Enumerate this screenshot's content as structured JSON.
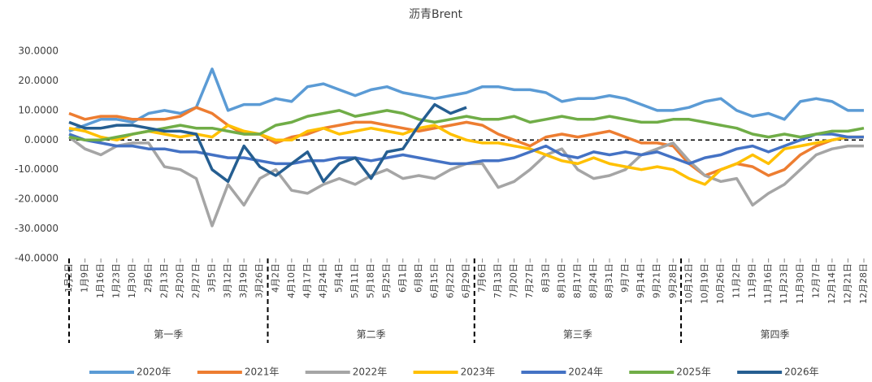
{
  "chart_data": {
    "type": "line",
    "title": "沥青Brent",
    "categories": [
      "1月2日",
      "1月9日",
      "1月16日",
      "1月23日",
      "1月30日",
      "2月6日",
      "2月13日",
      "2月20日",
      "2月27日",
      "3月5日",
      "3月12日",
      "3月19日",
      "3月26日",
      "4月2日",
      "4月10日",
      "4月17日",
      "4月24日",
      "5月4日",
      "5月11日",
      "5月18日",
      "5月25日",
      "6月1日",
      "6月8日",
      "6月15日",
      "6月22日",
      "6月29日",
      "7月6日",
      "7月13日",
      "7月20日",
      "7月27日",
      "8月3日",
      "8月10日",
      "8月17日",
      "8月24日",
      "8月31日",
      "9月7日",
      "9月14日",
      "9月21日",
      "9月28日",
      "10月12日",
      "10月19日",
      "10月26日",
      "11月2日",
      "11月9日",
      "11月16日",
      "11月23日",
      "11月30日",
      "12月7日",
      "12月14日",
      "12月21日",
      "12月28日"
    ],
    "quarters": [
      "第一季",
      "第二季",
      "第三季",
      "第四季"
    ],
    "ylim": [
      -40,
      30
    ],
    "yticks": [
      {
        "value": -40,
        "label": "-40.0000"
      },
      {
        "value": -30,
        "label": "-30.0000"
      },
      {
        "value": -20,
        "label": "-20.0000"
      },
      {
        "value": -10,
        "label": "-10.0000"
      },
      {
        "value": 0,
        "label": "0.0000"
      },
      {
        "value": 10,
        "label": "10.0000"
      },
      {
        "value": 20,
        "label": "20.0000"
      },
      {
        "value": 30,
        "label": "30.0000"
      }
    ],
    "series": [
      {
        "name": "2020年",
        "color": "#5B9BD5",
        "values": [
          3,
          5,
          7,
          7,
          6,
          9,
          10,
          9,
          11,
          24,
          10,
          12,
          12,
          14,
          13,
          18,
          19,
          17,
          15,
          17,
          18,
          16,
          15,
          14,
          15,
          16,
          18,
          18,
          17,
          17,
          16,
          13,
          14,
          14,
          15,
          14,
          12,
          10,
          10,
          11,
          13,
          14,
          10,
          8,
          9,
          7,
          13,
          14,
          13,
          10,
          10
        ]
      },
      {
        "name": "2021年",
        "color": "#ED7D31",
        "values": [
          9,
          7,
          8,
          8,
          7,
          7,
          7,
          8,
          11,
          9,
          5,
          2,
          2,
          -1,
          1,
          2,
          4,
          5,
          6,
          6,
          5,
          4,
          3,
          4,
          5,
          6,
          5,
          2,
          0,
          -2,
          1,
          2,
          1,
          2,
          3,
          1,
          -1,
          -1,
          -2,
          -8,
          -12,
          -10,
          -8,
          -9,
          -12,
          -10,
          -5,
          -2,
          0,
          1,
          1
        ]
      },
      {
        "name": "2022年",
        "color": "#A5A5A5",
        "values": [
          1,
          -3,
          -5,
          -2,
          -1,
          -1,
          -9,
          -10,
          -13,
          -29,
          -15,
          -22,
          -13,
          -10,
          -17,
          -18,
          -15,
          -13,
          -15,
          -12,
          -10,
          -13,
          -12,
          -13,
          -10,
          -8,
          -8,
          -16,
          -14,
          -10,
          -5,
          -3,
          -10,
          -13,
          -12,
          -10,
          -5,
          -3,
          -1,
          -7,
          -12,
          -14,
          -13,
          -22,
          -18,
          -15,
          -10,
          -5,
          -3,
          -2,
          -2
        ]
      },
      {
        "name": "2023年",
        "color": "#FFC000",
        "values": [
          4,
          3,
          1,
          0,
          2,
          3,
          2,
          1,
          2,
          1,
          5,
          3,
          2,
          0,
          0,
          3,
          4,
          2,
          3,
          4,
          3,
          2,
          4,
          5,
          2,
          0,
          -1,
          -1,
          -2,
          -3,
          -5,
          -7,
          -8,
          -6,
          -8,
          -9,
          -10,
          -9,
          -10,
          -13,
          -15,
          -10,
          -8,
          -5,
          -8,
          -3,
          -2,
          -1,
          0,
          1,
          1
        ]
      },
      {
        "name": "2024年",
        "color": "#4472C4",
        "values": [
          2,
          0,
          -1,
          -2,
          -2,
          -3,
          -3,
          -4,
          -4,
          -5,
          -6,
          -6,
          -7,
          -8,
          -8,
          -7,
          -7,
          -6,
          -6,
          -7,
          -6,
          -5,
          -6,
          -7,
          -8,
          -8,
          -7,
          -7,
          -6,
          -4,
          -2,
          -5,
          -6,
          -4,
          -5,
          -4,
          -5,
          -4,
          -6,
          -8,
          -6,
          -5,
          -3,
          -2,
          -4,
          -2,
          0,
          2,
          2,
          1,
          1
        ]
      },
      {
        "name": "2025年",
        "color": "#70AD47",
        "values": [
          1,
          0,
          0,
          1,
          2,
          3,
          4,
          5,
          4,
          4,
          3,
          2,
          2,
          5,
          6,
          8,
          9,
          10,
          8,
          9,
          10,
          9,
          7,
          6,
          7,
          8,
          7,
          7,
          8,
          6,
          7,
          8,
          7,
          7,
          8,
          7,
          6,
          6,
          7,
          7,
          6,
          5,
          4,
          2,
          1,
          2,
          1,
          2,
          3,
          3,
          4
        ]
      },
      {
        "name": "2026年",
        "color": "#255E91",
        "values": [
          6,
          4,
          4,
          5,
          5,
          4,
          3,
          3,
          2,
          -10,
          -14,
          -2,
          -9,
          -12,
          -8,
          -4,
          -14,
          -8,
          -6,
          -13,
          -4,
          -3,
          5,
          12,
          9,
          11,
          null,
          null,
          null,
          null,
          null,
          null,
          null,
          null,
          null,
          null,
          null,
          null,
          null,
          null,
          null,
          null,
          null,
          null,
          null,
          null,
          null,
          null,
          null,
          null,
          null
        ]
      }
    ]
  }
}
